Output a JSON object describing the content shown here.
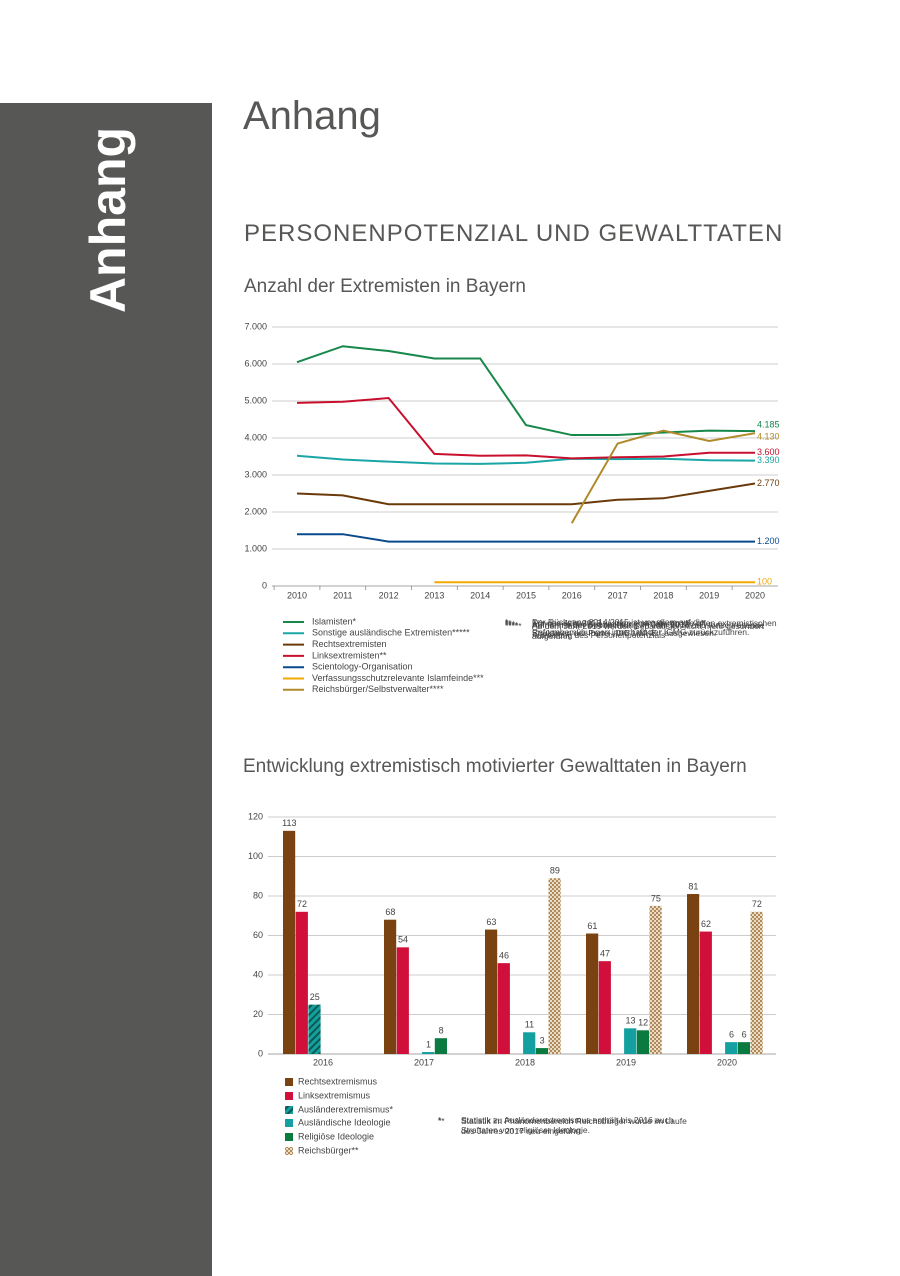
{
  "sidebar": "Anhang",
  "title": "Anhang",
  "section": "PERSONENPOTENZIAL UND GEWALTTATEN",
  "chart_data": [
    {
      "type": "line",
      "title": "Anzahl der Extremisten in Bayern",
      "categories": [
        "2010",
        "2011",
        "2012",
        "2013",
        "2014",
        "2015",
        "2016",
        "2017",
        "2018",
        "2019",
        "2020"
      ],
      "ylim": [
        0,
        7000
      ],
      "yticks": [
        0,
        {
          "value": 1000,
          "label": "1.000"
        },
        {
          "value": 2000,
          "label": "2.000"
        },
        {
          "value": 3000,
          "label": "3.000"
        },
        {
          "value": 4000,
          "label": "4.000"
        },
        {
          "value": 5000,
          "label": "5.000"
        },
        {
          "value": 6000,
          "label": "6.000"
        },
        {
          "value": 7000,
          "label": "7.000"
        }
      ],
      "grid": true,
      "series": [
        {
          "name": "Islamisten*",
          "color": "#17874a",
          "values": [
            6050,
            6480,
            6350,
            6150,
            6150,
            4350,
            4080,
            4080,
            4150,
            4200,
            4185
          ],
          "value_labels": [
            null,
            null,
            null,
            null,
            null,
            null,
            null,
            null,
            null,
            null,
            "4.185"
          ]
        },
        {
          "name": "Sonstige ausländische Extremisten*****",
          "color": "#1aa6a6",
          "values": [
            3520,
            3420,
            3360,
            3310,
            3300,
            3330,
            3440,
            3430,
            3440,
            3400,
            3390
          ],
          "value_labels": [
            null,
            null,
            null,
            null,
            null,
            null,
            null,
            null,
            null,
            null,
            "3.390"
          ]
        },
        {
          "name": "Rechtsextremisten",
          "color": "#6b3a0a",
          "values": [
            2500,
            2450,
            2210,
            2210,
            2210,
            2210,
            2210,
            2330,
            2370,
            2570,
            2770
          ],
          "value_labels": [
            null,
            null,
            null,
            null,
            null,
            null,
            null,
            null,
            null,
            null,
            "2.770"
          ]
        },
        {
          "name": "Linksextremisten**",
          "color": "#c8102e",
          "values": [
            4950,
            4980,
            5080,
            3570,
            3520,
            3530,
            3450,
            3480,
            3500,
            3600,
            3600
          ],
          "value_labels": [
            null,
            null,
            null,
            null,
            null,
            null,
            null,
            null,
            null,
            null,
            "3.600"
          ]
        },
        {
          "name": "Scientology-Organisation",
          "color": "#0a4a8c",
          "values": [
            1400,
            1400,
            1200,
            1200,
            1200,
            1200,
            1200,
            1200,
            1200,
            1200,
            1200
          ],
          "value_labels": [
            null,
            null,
            null,
            null,
            null,
            null,
            null,
            null,
            null,
            null,
            "1.200"
          ]
        },
        {
          "name": "Verfassungsschutzrelevante Islamfeinde***",
          "color": "#f2a900",
          "values": [
            null,
            null,
            null,
            100,
            100,
            100,
            100,
            100,
            100,
            100,
            100
          ],
          "value_labels": [
            null,
            null,
            null,
            null,
            null,
            null,
            null,
            null,
            null,
            null,
            "100"
          ]
        },
        {
          "name": "Reichsbürger/Selbstverwalter****",
          "color": "#b08a2a",
          "values": [
            null,
            null,
            null,
            null,
            null,
            null,
            1700,
            3850,
            4200,
            3920,
            4130
          ],
          "value_labels": [
            null,
            null,
            null,
            null,
            null,
            null,
            null,
            null,
            null,
            null,
            "4.130"
          ]
        }
      ],
      "notes": [
        {
          "mark": "*",
          "text": "Der Rückgang 2014/2015 ist vor allem auf die Reformbemühungen innerhalb der IGMG zurückzuführen."
        },
        {
          "mark": "**",
          "text": "Für das Jahr 2013 wurden erstmals nur die offen extremistischen Strukturen der Partei „DIE LINKE.“ ausgewiesen."
        },
        {
          "mark": "***",
          "text": "Aufnahme der Beobachtung im Jahr 2013"
        },
        {
          "mark": "****",
          "text": "Aufnahme der Beobachtung im Jahr 2016 und fortschreitende Aufhellung des Personenpotenzials"
        },
        {
          "mark": "*****",
          "text": "Ab dem Jahr 2019 werden Separatisten nicht mehr gesondert aufgeführt."
        }
      ]
    },
    {
      "type": "bar",
      "title": "Entwicklung extremistisch motivierter Gewalttaten in Bayern",
      "categories": [
        "2016",
        "2017",
        "2018",
        "2019",
        "2020"
      ],
      "ylim": [
        0,
        120
      ],
      "yticks": [
        0,
        20,
        40,
        60,
        80,
        100,
        120
      ],
      "grid": true,
      "series": [
        {
          "name": "Rechtsextremismus",
          "color": "#7a4210",
          "values": [
            113,
            68,
            63,
            61,
            81
          ]
        },
        {
          "name": "Linksextremismus",
          "color": "#d0103a",
          "values": [
            72,
            54,
            46,
            47,
            62
          ]
        },
        {
          "name": "Ausländerextremismus*",
          "color": "#14a0a0",
          "pattern": "hatch",
          "values": [
            25,
            null,
            null,
            null,
            null
          ]
        },
        {
          "name": "Ausländische Ideologie",
          "color": "#14a0a0",
          "values": [
            null,
            1,
            11,
            13,
            6
          ]
        },
        {
          "name": "Religiöse Ideologie",
          "color": "#0a7a40",
          "values": [
            null,
            8,
            3,
            12,
            6
          ]
        },
        {
          "name": "Reichsbürger**",
          "color": "#b08a5a",
          "pattern": "checker",
          "values": [
            null,
            null,
            89,
            75,
            72
          ]
        }
      ],
      "notes": [
        {
          "mark": "*",
          "text": "Statistik zu Ausländerextremismus enthält bis 2016 auch Straftaten von religiöser Ideologie."
        },
        {
          "mark": "**",
          "text": "Statistik im Phänomenbereich Reichsbürger wurde im Laufe des Jahres 2017 neu eingeführt."
        }
      ]
    }
  ]
}
